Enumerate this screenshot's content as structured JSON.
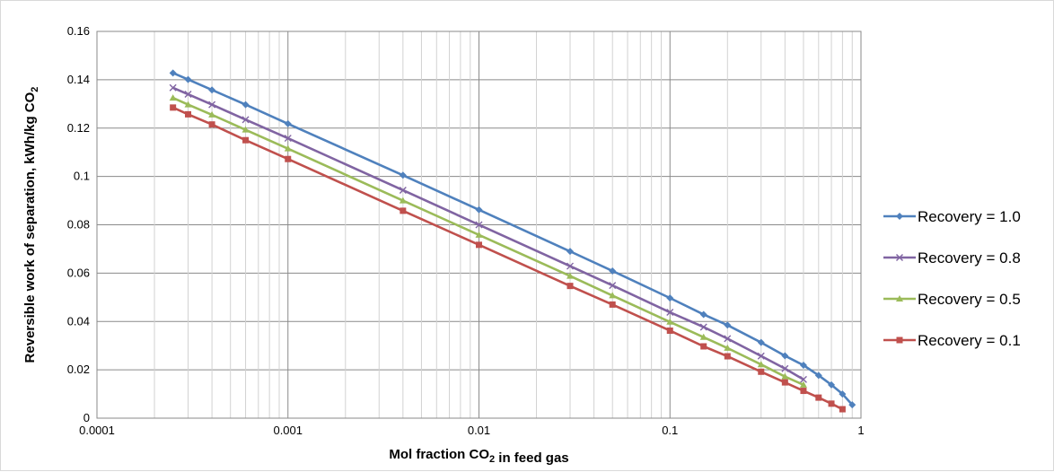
{
  "chart_data": {
    "type": "line",
    "title": "",
    "xlabel": "Mol fraction CO₂ in feed gas",
    "ylabel": "Reversible work of separation, kWh/kg CO₂",
    "xscale": "log",
    "xlim": [
      0.0001,
      1
    ],
    "ylim": [
      0,
      0.16
    ],
    "x_ticks": [
      0.0001,
      0.001,
      0.01,
      0.1,
      1
    ],
    "x_tick_labels": [
      "0.0001",
      "0.001",
      "0.01",
      "0.1",
      "1"
    ],
    "y_ticks": [
      0,
      0.02,
      0.04,
      0.06,
      0.08,
      0.1,
      0.12,
      0.14,
      0.16
    ],
    "y_tick_labels": [
      "0",
      "0.02",
      "0.04",
      "0.06",
      "0.08",
      "0.1",
      "0.12",
      "0.14",
      "0.16"
    ],
    "grid": true,
    "legend_position": "right",
    "series": [
      {
        "name": "Recovery = 1.0",
        "color": "#4f81bd",
        "marker": "diamond",
        "x": [
          0.00025,
          0.0003,
          0.0004,
          0.0006,
          0.001,
          0.004,
          0.01,
          0.03,
          0.05,
          0.1,
          0.15,
          0.2,
          0.3,
          0.4,
          0.5,
          0.6,
          0.7,
          0.8,
          0.9
        ],
        "y": [
          0.1428,
          0.1401,
          0.1358,
          0.1297,
          0.1218,
          0.1005,
          0.0862,
          0.069,
          0.0609,
          0.0497,
          0.0429,
          0.0385,
          0.0313,
          0.0258,
          0.0219,
          0.0177,
          0.0138,
          0.01,
          0.0055
        ]
      },
      {
        "name": "Recovery = 0.8",
        "color": "#8064a2",
        "marker": "x",
        "x": [
          0.00025,
          0.0003,
          0.0004,
          0.0006,
          0.001,
          0.004,
          0.01,
          0.03,
          0.05,
          0.1,
          0.15,
          0.2,
          0.3,
          0.4,
          0.5
        ],
        "y": [
          0.1367,
          0.134,
          0.1297,
          0.1235,
          0.1158,
          0.0943,
          0.08,
          0.0629,
          0.0549,
          0.0438,
          0.0377,
          0.0329,
          0.0257,
          0.0205,
          0.016
        ]
      },
      {
        "name": "Recovery = 0.5",
        "color": "#9bbb59",
        "marker": "triangle",
        "x": [
          0.00025,
          0.0003,
          0.0004,
          0.0006,
          0.001,
          0.004,
          0.01,
          0.03,
          0.05,
          0.1,
          0.15,
          0.2,
          0.3,
          0.4,
          0.5
        ],
        "y": [
          0.1325,
          0.1297,
          0.1255,
          0.1193,
          0.1115,
          0.09,
          0.0758,
          0.0588,
          0.0507,
          0.0398,
          0.0335,
          0.029,
          0.0222,
          0.0172,
          0.0138
        ]
      },
      {
        "name": "Recovery = 0.1",
        "color": "#c0504d",
        "marker": "square",
        "x": [
          0.00025,
          0.0003,
          0.0004,
          0.0006,
          0.001,
          0.004,
          0.01,
          0.03,
          0.05,
          0.1,
          0.15,
          0.2,
          0.3,
          0.4,
          0.5,
          0.6,
          0.7,
          0.8
        ],
        "y": [
          0.1285,
          0.1257,
          0.1215,
          0.115,
          0.1072,
          0.0858,
          0.0717,
          0.0547,
          0.047,
          0.0362,
          0.0297,
          0.0256,
          0.0192,
          0.0148,
          0.0113,
          0.0085,
          0.006,
          0.0037
        ]
      }
    ]
  }
}
